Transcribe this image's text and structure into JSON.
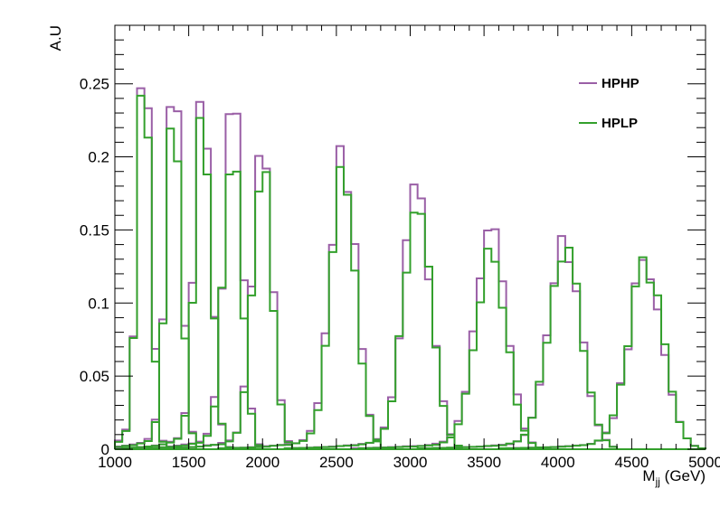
{
  "chart_data": {
    "type": "step-histogram",
    "title": "",
    "xlabel_main": "M",
    "xlabel_sub": "jj",
    "xlabel_unit": " (GeV)",
    "ylabel": "A.U",
    "xlim": [
      1000,
      5000
    ],
    "ylim": [
      0,
      0.29
    ],
    "bin_width": 50,
    "x_ticks": [
      1000,
      1500,
      2000,
      2500,
      3000,
      3500,
      4000,
      4500,
      5000
    ],
    "x_tick_labels": [
      "1000",
      "1500",
      "2000",
      "2500",
      "3000",
      "3500",
      "4000",
      "4500",
      "5000"
    ],
    "y_ticks": [
      0,
      0.05,
      0.1,
      0.15,
      0.2,
      0.25
    ],
    "y_tick_labels": [
      "0",
      "0.05",
      "0.1",
      "0.15",
      "0.2",
      "0.25"
    ],
    "legend_position": "top-right",
    "series": [
      {
        "name": "HPHP",
        "color": "#9a5fa6"
      },
      {
        "name": "HPLP",
        "color": "#33a02c"
      }
    ],
    "mass_points": [
      {
        "mass": 1200,
        "peak_hphp": 0.277,
        "peak_hplp": 0.249,
        "width": 45
      },
      {
        "mass": 1400,
        "peak_hphp": 0.258,
        "peak_hplp": 0.23,
        "width": 50
      },
      {
        "mass": 1600,
        "peak_hphp": 0.24,
        "peak_hplp": 0.222,
        "width": 55
      },
      {
        "mass": 1800,
        "peak_hphp": 0.236,
        "peak_hplp": 0.205,
        "width": 60
      },
      {
        "mass": 2000,
        "peak_hphp": 0.215,
        "peak_hplp": 0.193,
        "width": 65
      },
      {
        "mass": 2550,
        "peak_hphp": 0.193,
        "peak_hplp": 0.178,
        "width": 85
      },
      {
        "mass": 3050,
        "peak_hphp": 0.169,
        "peak_hplp": 0.159,
        "width": 95
      },
      {
        "mass": 3550,
        "peak_hphp": 0.146,
        "peak_hplp": 0.13,
        "width": 105
      },
      {
        "mass": 4050,
        "peak_hphp": 0.137,
        "peak_hplp": 0.133,
        "width": 110
      },
      {
        "mass": 4600,
        "peak_hphp": 0.122,
        "peak_hplp": 0.121,
        "width": 115
      }
    ]
  }
}
